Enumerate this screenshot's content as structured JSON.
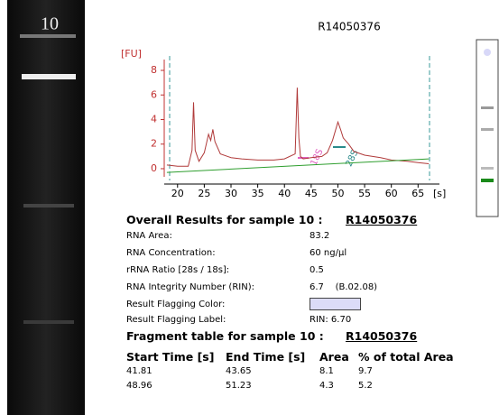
{
  "gel": {
    "lane_label": "10"
  },
  "chart_data": {
    "type": "line",
    "title": "R14050376",
    "y_label": "[FU]",
    "x_label": "[s]",
    "series": [
      {
        "color": "#b03a3a",
        "x": [
          18,
          20,
          22,
          22.7,
          23,
          23.3,
          24,
          25,
          25.8,
          26.2,
          26.6,
          27,
          28,
          30,
          32,
          35,
          38,
          40,
          42,
          42.4,
          42.7,
          43,
          43.5,
          45,
          47,
          48,
          49,
          50,
          50.5,
          51,
          52,
          53,
          55,
          58,
          60,
          63,
          65,
          67
        ],
        "values": [
          0.3,
          0.2,
          0.2,
          1.5,
          5.4,
          1.5,
          0.6,
          1.3,
          2.8,
          2.3,
          3.2,
          2.2,
          1.2,
          0.9,
          0.8,
          0.7,
          0.7,
          0.8,
          1.2,
          6.6,
          2.5,
          1,
          0.8,
          0.9,
          1.0,
          1.3,
          2.3,
          3.8,
          3.2,
          2.5,
          2.0,
          1.4,
          1.1,
          0.9,
          0.7,
          0.6,
          0.5,
          0.4
        ]
      },
      {
        "color": "#2e9e2e",
        "x": [
          18,
          67
        ],
        "values": [
          -0.3,
          0.8
        ]
      }
    ],
    "xlim": [
      17,
      69
    ],
    "xticks": [
      20,
      25,
      30,
      35,
      40,
      45,
      50,
      55,
      60,
      65
    ],
    "ylim": [
      -1,
      9
    ],
    "yticks": [
      0,
      2,
      4,
      6,
      8
    ],
    "annotations": [
      {
        "text": "18S",
        "color": "#e060c0"
      },
      {
        "text": "28S",
        "color": "#2a8a8a"
      }
    ]
  },
  "overall": {
    "heading": "Overall Results for sample 10 :",
    "sample": "R14050376",
    "rows": [
      [
        "RNA Area:",
        83.2
      ],
      [
        "RNA Concentration:",
        "60 ng/µl"
      ],
      [
        "rRNA Ratio [28s / 18s]:",
        0.5
      ],
      [
        "RNA Integrity Number (RIN):",
        "6.7    (B.02.08)"
      ]
    ],
    "flag_color_label": "Result Flagging Color:",
    "flag_label": "Result Flagging Label:",
    "flag_value": "RIN: 6.70"
  },
  "fragments": {
    "heading": "Fragment table for sample 10 :",
    "sample": "R14050376",
    "columns": [
      "Start Time [s]",
      "End Time [s]",
      "Area",
      "% of total Area"
    ],
    "rows": [
      [
        41.81,
        43.65,
        8.1,
        9.7
      ],
      [
        48.96,
        51.23,
        4.3,
        5.2
      ]
    ]
  }
}
